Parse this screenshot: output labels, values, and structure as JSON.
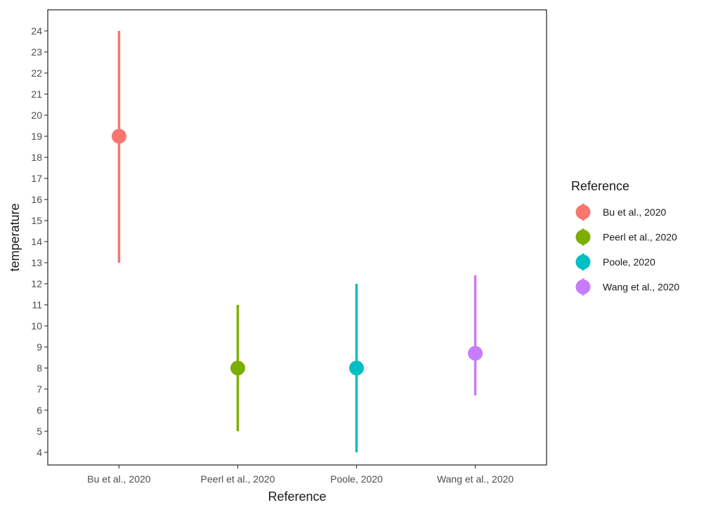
{
  "chart_data": {
    "type": "scatter",
    "subtype": "pointrange",
    "xlabel": "Reference",
    "ylabel": "temperature",
    "ylim": [
      3.4,
      25
    ],
    "yticks": [
      4,
      5,
      6,
      7,
      8,
      9,
      10,
      11,
      12,
      13,
      14,
      15,
      16,
      17,
      18,
      19,
      20,
      21,
      22,
      23,
      24
    ],
    "categories": [
      "Bu et al., 2020",
      "Peerl et al., 2020",
      "Poole, 2020",
      "Wang et al., 2020"
    ],
    "series": [
      {
        "name": "Bu et al., 2020",
        "category": "Bu et al., 2020",
        "value": 19,
        "low": 13,
        "high": 24,
        "color": "#F8766D"
      },
      {
        "name": "Peerl et al., 2020",
        "category": "Peerl et al., 2020",
        "value": 8,
        "low": 5,
        "high": 11,
        "color": "#7CAE00"
      },
      {
        "name": "Poole, 2020",
        "category": "Poole, 2020",
        "value": 8,
        "low": 4,
        "high": 12,
        "color": "#00BFC4"
      },
      {
        "name": "Wang et al., 2020",
        "category": "Wang et al., 2020",
        "value": 8.7,
        "low": 6.7,
        "high": 12.4,
        "color": "#C77CFF"
      }
    ],
    "legend": {
      "title": "Reference",
      "placement": "right"
    },
    "grid": false,
    "frame_color": "#333333"
  }
}
